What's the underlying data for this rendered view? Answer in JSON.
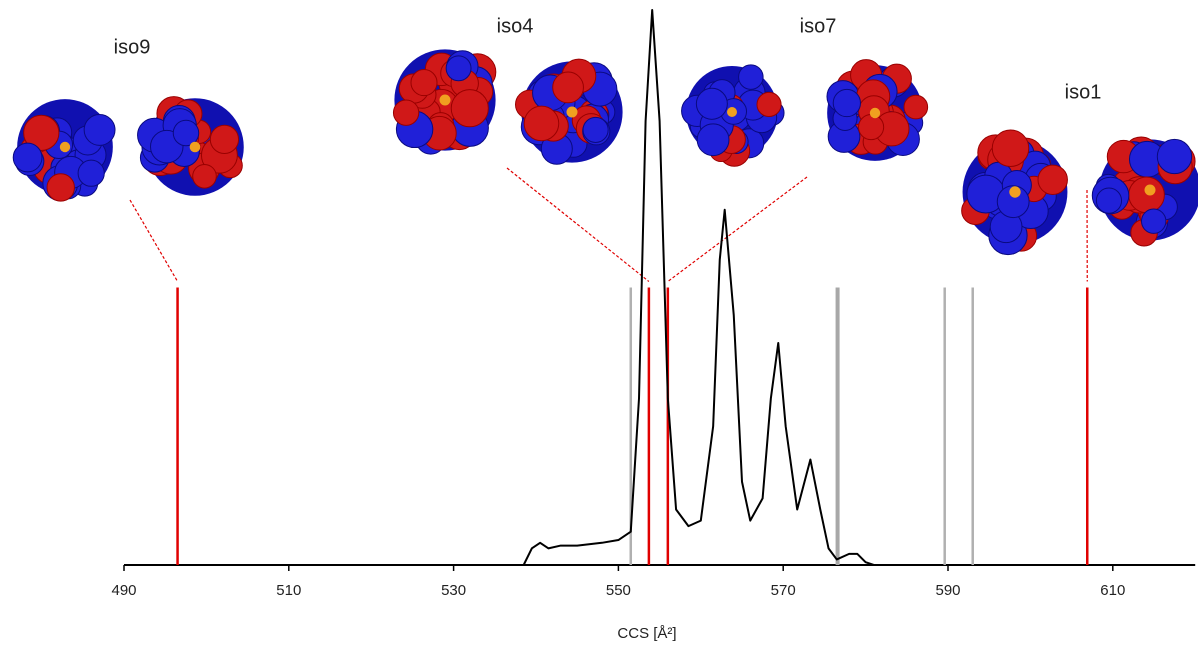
{
  "chart_data": {
    "type": "line",
    "xlabel": "CCS [Å²]",
    "xlim": [
      490,
      620
    ],
    "ylim": [
      0,
      100
    ],
    "xticks": [
      490,
      510,
      530,
      550,
      570,
      590,
      610
    ],
    "x": [
      538.5,
      539.5,
      540.5,
      541.5,
      543,
      545,
      548,
      550,
      551.5,
      552.5,
      553.3,
      554.1,
      555,
      556,
      557,
      558.5,
      560,
      561.5,
      562.3,
      562.9,
      564,
      565,
      566,
      567.5,
      568.5,
      569.4,
      570.3,
      571.7,
      573.3,
      574.5,
      575.5,
      576.5,
      578,
      579,
      580,
      581
    ],
    "series": [
      {
        "color": "#000000",
        "values": [
          0,
          3,
          4,
          3,
          3.5,
          3.5,
          4,
          4.5,
          6,
          30,
          80,
          100,
          80,
          30,
          10,
          7,
          8,
          25,
          55,
          64,
          45,
          15,
          8,
          12,
          30,
          40,
          25,
          10,
          19,
          10,
          3,
          1,
          2,
          2,
          0.5,
          0
        ]
      }
    ],
    "vertical_lines": [
      {
        "x": 496.5,
        "height": 50,
        "color": "#e00000",
        "label": "iso9"
      },
      {
        "x": 551.5,
        "height": 50,
        "color": "#b0b0b0"
      },
      {
        "x": 553.7,
        "height": 50,
        "color": "#e00000",
        "label": "iso4"
      },
      {
        "x": 556.0,
        "height": 50,
        "color": "#e00000",
        "label": "iso7"
      },
      {
        "x": 576.6,
        "height": 50,
        "color": "#a8a8a8",
        "width": 4
      },
      {
        "x": 589.6,
        "height": 50,
        "color": "#b0b0b0"
      },
      {
        "x": 593.0,
        "height": 50,
        "color": "#b0b0b0"
      },
      {
        "x": 606.9,
        "height": 50,
        "color": "#e00000",
        "label": "iso1"
      }
    ]
  }
}
